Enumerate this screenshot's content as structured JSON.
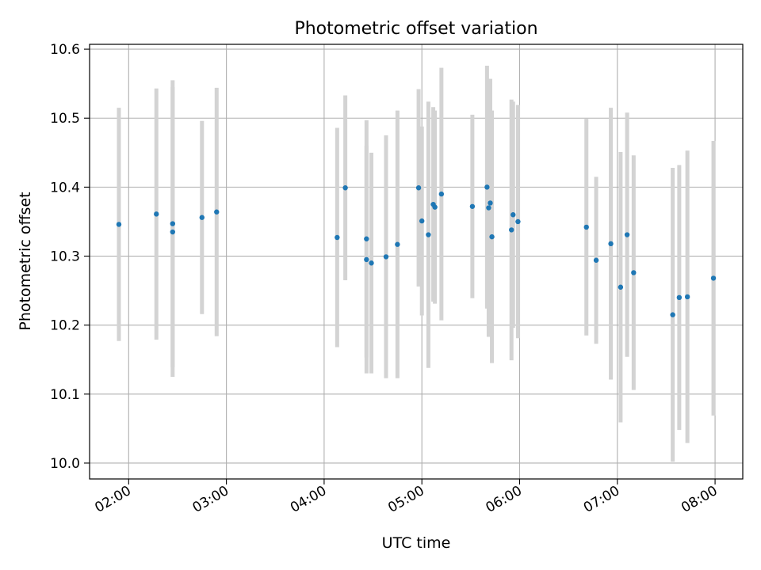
{
  "chart_data": {
    "type": "scatter",
    "title": "Photometric offset variation",
    "xlabel": "UTC time",
    "ylabel": "Photometric offset",
    "grid": true,
    "x_tick_labels": [
      "02:00",
      "03:00",
      "04:00",
      "05:00",
      "06:00",
      "07:00",
      "08:00"
    ],
    "y_tick_labels": [
      "10.0",
      "10.1",
      "10.2",
      "10.3",
      "10.4",
      "10.5",
      "10.6"
    ],
    "xlim": [
      "01:36",
      "08:17"
    ],
    "ylim": [
      9.977,
      10.607
    ],
    "series": [
      {
        "marker": "dot",
        "errorbars": "vertical",
        "points": [
          {
            "x": "01:54",
            "y": 10.346,
            "yerr": 0.169
          },
          {
            "x": "02:17",
            "y": 10.361,
            "yerr": 0.182
          },
          {
            "x": "02:27",
            "y": 10.347,
            "yerr": 0.208
          },
          {
            "x": "02:27",
            "y": 10.335,
            "yerr": 0.21
          },
          {
            "x": "02:45",
            "y": 10.356,
            "yerr": 0.14
          },
          {
            "x": "02:54",
            "y": 10.364,
            "yerr": 0.18
          },
          {
            "x": "04:08",
            "y": 10.327,
            "yerr": 0.159
          },
          {
            "x": "04:13",
            "y": 10.399,
            "yerr": 0.134
          },
          {
            "x": "04:26",
            "y": 10.325,
            "yerr": 0.172
          },
          {
            "x": "04:26",
            "y": 10.295,
            "yerr": 0.165
          },
          {
            "x": "04:29",
            "y": 10.29,
            "yerr": 0.16
          },
          {
            "x": "04:38",
            "y": 10.299,
            "yerr": 0.176
          },
          {
            "x": "04:45",
            "y": 10.317,
            "yerr": 0.194
          },
          {
            "x": "04:58",
            "y": 10.399,
            "yerr": 0.143
          },
          {
            "x": "05:00",
            "y": 10.351,
            "yerr": 0.137
          },
          {
            "x": "05:04",
            "y": 10.331,
            "yerr": 0.193
          },
          {
            "x": "05:07",
            "y": 10.375,
            "yerr": 0.141
          },
          {
            "x": "05:08",
            "y": 10.371,
            "yerr": 0.14
          },
          {
            "x": "05:12",
            "y": 10.39,
            "yerr": 0.183
          },
          {
            "x": "05:31",
            "y": 10.372,
            "yerr": 0.133
          },
          {
            "x": "05:40",
            "y": 10.4,
            "yerr": 0.176
          },
          {
            "x": "05:41",
            "y": 10.37,
            "yerr": 0.187
          },
          {
            "x": "05:42",
            "y": 10.377,
            "yerr": 0.18
          },
          {
            "x": "05:43",
            "y": 10.328,
            "yerr": 0.183
          },
          {
            "x": "05:55",
            "y": 10.338,
            "yerr": 0.189
          },
          {
            "x": "05:56",
            "y": 10.36,
            "yerr": 0.164
          },
          {
            "x": "05:59",
            "y": 10.35,
            "yerr": 0.169
          },
          {
            "x": "06:41",
            "y": 10.342,
            "yerr": 0.157
          },
          {
            "x": "06:47",
            "y": 10.294,
            "yerr": 0.121
          },
          {
            "x": "06:56",
            "y": 10.318,
            "yerr": 0.197
          },
          {
            "x": "07:02",
            "y": 10.255,
            "yerr": 0.196
          },
          {
            "x": "07:06",
            "y": 10.331,
            "yerr": 0.177
          },
          {
            "x": "07:10",
            "y": 10.276,
            "yerr": 0.17
          },
          {
            "x": "07:34",
            "y": 10.215,
            "yerr": 0.213
          },
          {
            "x": "07:38",
            "y": 10.24,
            "yerr": 0.192
          },
          {
            "x": "07:43",
            "y": 10.241,
            "yerr": 0.212
          },
          {
            "x": "07:59",
            "y": 10.268,
            "yerr": 0.199
          }
        ]
      }
    ],
    "colors": {
      "marker": "#1f77b4",
      "errorbar": "#d3d3d3",
      "grid": "#b0b0b0",
      "axes": "#000000"
    }
  }
}
